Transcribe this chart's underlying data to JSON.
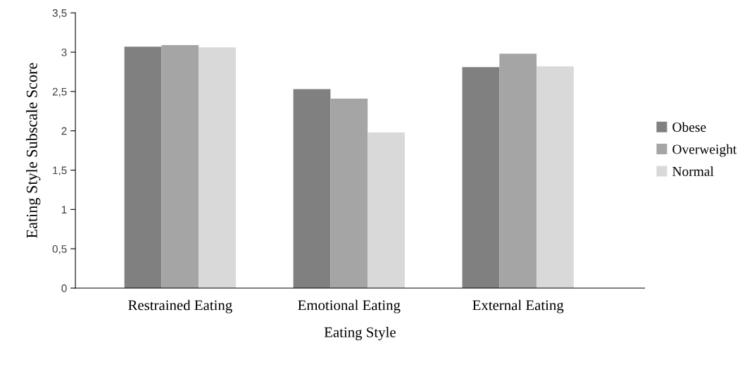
{
  "chart_data": {
    "type": "bar",
    "xlabel": "Eating Style",
    "ylabel": "Eating Style Subscale Score",
    "categories": [
      "Restrained Eating",
      "Emotional Eating",
      "External Eating"
    ],
    "series": [
      {
        "name": "Obese",
        "color": "#808080",
        "values": [
          3.07,
          2.53,
          2.81
        ]
      },
      {
        "name": "Overweight",
        "color": "#a5a5a5",
        "values": [
          3.09,
          2.41,
          2.98
        ]
      },
      {
        "name": "Normal",
        "color": "#d9d9d9",
        "values": [
          3.06,
          1.98,
          2.82
        ]
      }
    ],
    "ylim": [
      0,
      3.5
    ],
    "yticks": [
      {
        "value": 0,
        "label": "0"
      },
      {
        "value": 0.5,
        "label": "0,5"
      },
      {
        "value": 1,
        "label": "1"
      },
      {
        "value": 1.5,
        "label": "1,5"
      },
      {
        "value": 2,
        "label": "2"
      },
      {
        "value": 2.5,
        "label": "2,5"
      },
      {
        "value": 3,
        "label": "3"
      },
      {
        "value": 3.5,
        "label": "3,5"
      }
    ],
    "grid": false,
    "legend": "right"
  }
}
